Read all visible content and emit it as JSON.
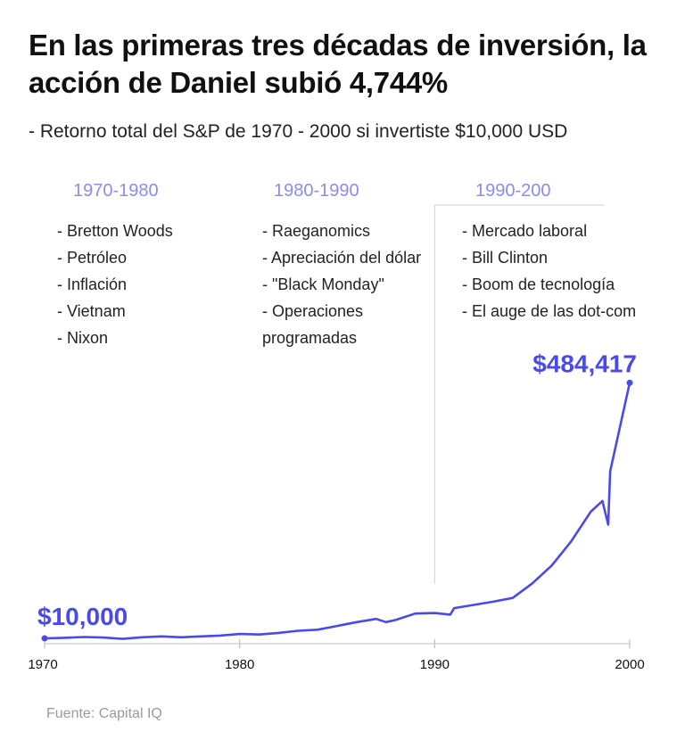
{
  "title": "En las primeras tres décadas de inversión, la acción de Daniel subió 4,744%",
  "subtitle": "-  Retorno total del S&P de 1970 - 2000 si invertiste $10,000 USD",
  "source": "Fuente: Capital IQ",
  "accent_color": "#4a4ae8",
  "decade_color": "#8c8cf0",
  "decades": [
    {
      "label": "1970-1980",
      "events": [
        "- Bretton Woods",
        "- Petróleo",
        "- Inflación",
        "- Vietnam",
        "- Nixon"
      ]
    },
    {
      "label": "1980-1990",
      "events": [
        "- Raeganomics",
        "- Apreciación del dólar",
        "- \"Black Monday\"",
        "- Operaciones programadas"
      ]
    },
    {
      "label": "1990-200",
      "events": [
        "- Mercado laboral",
        "- Bill Clinton",
        "- Boom de tecnología",
        "- El auge de las dot-com"
      ]
    }
  ],
  "chart_data": {
    "type": "line",
    "series": [
      {
        "x": [
          1970,
          1971,
          1972,
          1973,
          1974,
          1975,
          1976,
          1977,
          1978,
          1979,
          1980,
          1981,
          1982,
          1983,
          1984,
          1985,
          1986,
          1987,
          1987.5,
          1988,
          1989,
          1990,
          1990.8,
          1991,
          1992,
          1993,
          1994,
          1995,
          1996,
          1997,
          1998,
          1998.6,
          1998.9,
          1999,
          2000
        ],
        "values": [
          10000,
          11000,
          12500,
          11500,
          9000,
          12000,
          13500,
          12000,
          13500,
          15000,
          18000,
          17000,
          20000,
          24000,
          26000,
          33000,
          40000,
          46000,
          40000,
          44000,
          56000,
          57000,
          54000,
          66000,
          72000,
          78000,
          85000,
          112000,
          145000,
          190000,
          245000,
          265000,
          221000,
          320000,
          484417
        ]
      }
    ],
    "x_ticks": [
      "1970",
      "1980",
      "1990",
      "2000"
    ],
    "xlim": [
      1970,
      2000
    ],
    "ylim": [
      0,
      500000
    ],
    "annotations": [
      {
        "x": 1970,
        "value": 10000,
        "label": "$10,000"
      },
      {
        "x": 2000,
        "value": 484417,
        "label": "$484,417"
      }
    ],
    "reference_line_x": 1990,
    "grid": false,
    "legend": "none"
  }
}
